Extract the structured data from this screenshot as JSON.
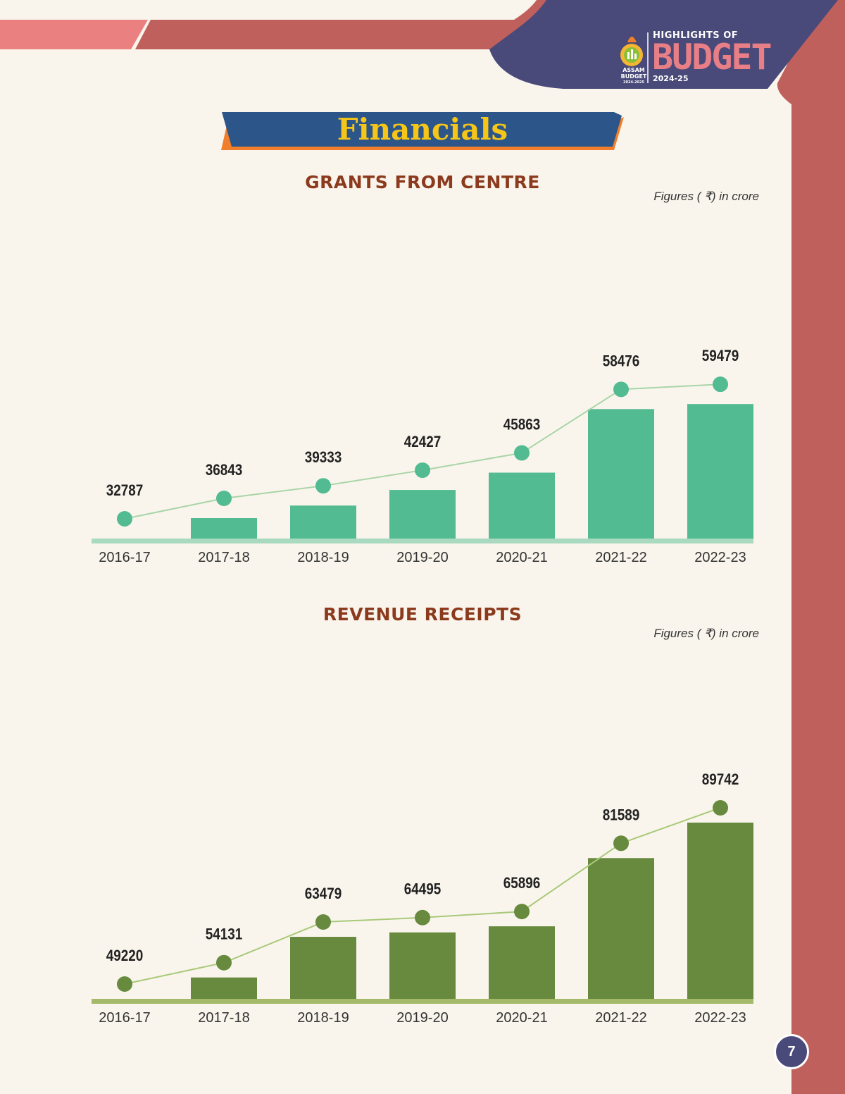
{
  "header": {
    "logo_top": "HIGHLIGHTS OF",
    "logo_big": "BUDGET",
    "logo_year": "2024-25",
    "emblem_line1": "ASSAM",
    "emblem_line2": "BUDGET",
    "emblem_line3": "2024-2025"
  },
  "page_title": "Financials",
  "page_number": "7",
  "colors": {
    "background": "#faf5ec",
    "header_band": "#c0605c",
    "header_band_light": "#ea8080",
    "logo_panel": "#4a4a7a",
    "title_banner": "#2c5689",
    "title_banner_accent": "#f07e2a",
    "grants_bar": "#52bb92",
    "grants_line": "#a8d5a8",
    "revenue_bar": "#678a3e",
    "revenue_line": "#a8c978"
  },
  "chart_data": [
    {
      "type": "bar",
      "title": "GRANTS FROM CENTRE",
      "unit_note": "Figures ( ₹) in crore",
      "categories": [
        "2016-17",
        "2017-18",
        "2018-19",
        "2019-20",
        "2020-21",
        "2021-22",
        "2022-23"
      ],
      "values": [
        32787,
        36843,
        39333,
        42427,
        45863,
        58476,
        59479
      ],
      "overlay_line": true,
      "data_labels": true,
      "grid": false,
      "legend": "none"
    },
    {
      "type": "bar",
      "title": "REVENUE RECEIPTS",
      "unit_note": "Figures ( ₹) in crore",
      "categories": [
        "2016-17",
        "2017-18",
        "2018-19",
        "2019-20",
        "2020-21",
        "2021-22",
        "2022-23"
      ],
      "values": [
        49220,
        54131,
        63479,
        64495,
        65896,
        81589,
        89742
      ],
      "overlay_line": true,
      "data_labels": true,
      "grid": false,
      "legend": "none"
    }
  ]
}
